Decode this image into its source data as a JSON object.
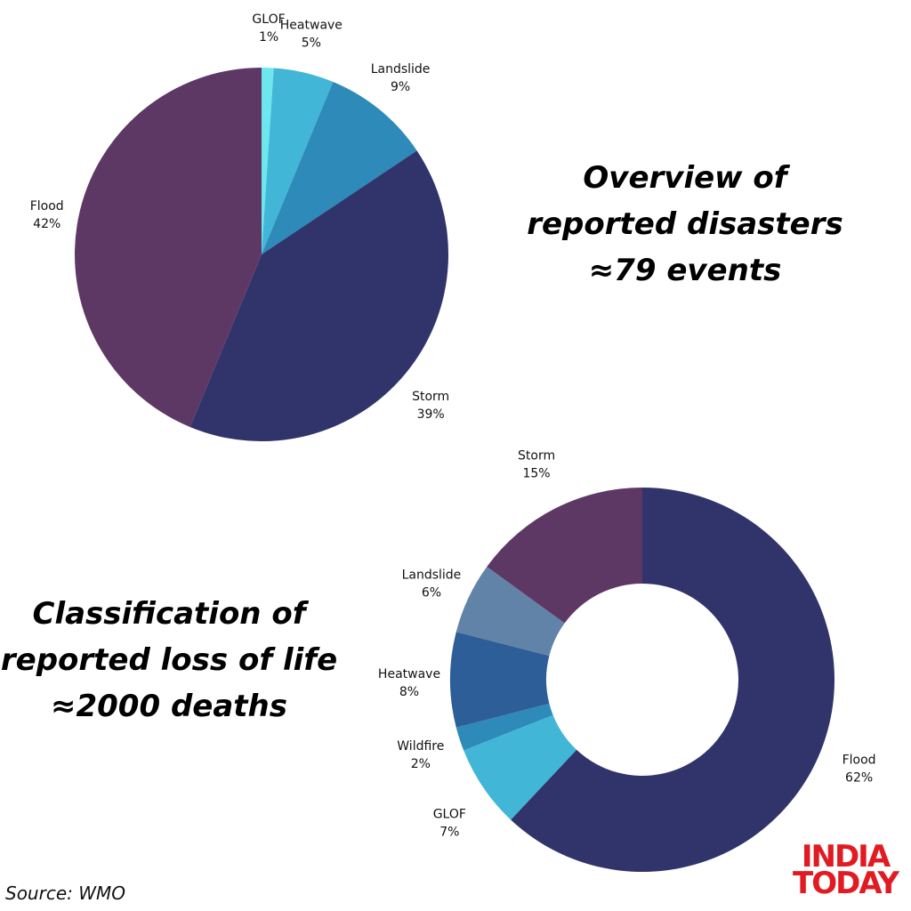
{
  "chart_data": [
    {
      "type": "pie",
      "title": "Overview of reported disasters ≈79 events",
      "title_lines": [
        "Overview of",
        "reported disasters",
        "≈79 events"
      ],
      "slices": [
        {
          "label": "GLOF",
          "value": 1,
          "value_label": "1%",
          "color": "#6ee6ee"
        },
        {
          "label": "Heatwave",
          "value": 5,
          "value_label": "5%",
          "color": "#42b6d6"
        },
        {
          "label": "Landslide",
          "value": 9,
          "value_label": "9%",
          "color": "#2e8ab9"
        },
        {
          "label": "Storm",
          "value": 39,
          "value_label": "39%",
          "color": "#31336b"
        },
        {
          "label": "Flood",
          "value": 42,
          "value_label": "42%",
          "color": "#5e3865"
        }
      ]
    },
    {
      "type": "pie",
      "title": "Classification of reported loss of life ≈2000 deaths",
      "title_lines": [
        "Classification of",
        "reported loss of life",
        "≈2000 deaths"
      ],
      "slices": [
        {
          "label": "Flood",
          "value": 62,
          "value_label": "62%",
          "color": "#31336b"
        },
        {
          "label": "GLOF",
          "value": 7,
          "value_label": "7%",
          "color": "#42b6d6"
        },
        {
          "label": "Wildfire",
          "value": 2,
          "value_label": "2%",
          "color": "#2e8ab9"
        },
        {
          "label": "Heatwave",
          "value": 8,
          "value_label": "8%",
          "color": "#2e5e97"
        },
        {
          "label": "Landslide",
          "value": 6,
          "value_label": "6%",
          "color": "#6283a8"
        },
        {
          "label": "Storm",
          "value": 15,
          "value_label": "15%",
          "color": "#5e3865"
        }
      ]
    }
  ],
  "source": "Source: WMO",
  "logo": {
    "line1": "INDIA",
    "line2": "TODAY",
    "color": "#e11b22"
  }
}
